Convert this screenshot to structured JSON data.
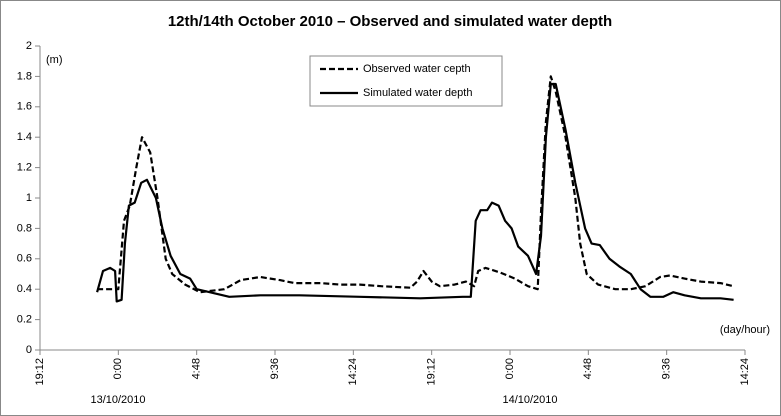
{
  "chart_data": {
    "type": "line",
    "title": "12th/14th October 2010 – Observed and simulated water depth",
    "y_label": "(m)",
    "x_label": "(day/hour)",
    "annotations": [
      "13/10/2010",
      "14/10/2010"
    ],
    "xlim": [
      19.2,
      62.4
    ],
    "xticks": [
      {
        "value": 19.2,
        "label": "19:12"
      },
      {
        "value": 24,
        "label": "0:00"
      },
      {
        "value": 28.8,
        "label": "4:48"
      },
      {
        "value": 33.6,
        "label": "9:36"
      },
      {
        "value": 38.4,
        "label": "14:24"
      },
      {
        "value": 43.2,
        "label": "19:12"
      },
      {
        "value": 48,
        "label": "0:00"
      },
      {
        "value": 52.8,
        "label": "4:48"
      },
      {
        "value": 57.6,
        "label": "9:36"
      },
      {
        "value": 62.4,
        "label": "14:24"
      }
    ],
    "ylim": [
      0,
      2
    ],
    "yticks": [
      0,
      0.2,
      0.4,
      0.6,
      0.8,
      1,
      1.2,
      1.4,
      1.6,
      1.8,
      2
    ],
    "grid": false,
    "series": [
      {
        "name": "Observed water cepth",
        "color": "#000000",
        "dashed": true,
        "x": [
          22.7,
          24,
          24.35,
          24.7,
          25.1,
          25.45,
          25.95,
          26.4,
          26.9,
          27.3,
          28.1,
          29.0,
          30.5,
          31.5,
          32.7,
          33.9,
          34.8,
          36.4,
          37.6,
          38.8,
          40.1,
          41.9,
          42.3,
          42.7,
          43.2,
          43.7,
          44.6,
          45.3,
          45.8,
          46.05,
          46.5,
          47.4,
          48.3,
          49.1,
          49.7,
          49.9,
          50.2,
          50.5,
          50.8,
          51.4,
          52.0,
          52.3,
          52.7,
          53.4,
          54.45,
          55.4,
          56.3,
          57.2,
          57.8,
          58.7,
          59.7,
          60.9,
          61.7
        ],
        "values": [
          0.4,
          0.4,
          0.85,
          0.95,
          1.2,
          1.4,
          1.3,
          1.0,
          0.6,
          0.5,
          0.43,
          0.38,
          0.4,
          0.46,
          0.48,
          0.46,
          0.44,
          0.44,
          0.43,
          0.43,
          0.42,
          0.41,
          0.45,
          0.52,
          0.45,
          0.42,
          0.43,
          0.45,
          0.42,
          0.52,
          0.54,
          0.51,
          0.47,
          0.42,
          0.4,
          0.9,
          1.5,
          1.8,
          1.7,
          1.4,
          1.0,
          0.7,
          0.5,
          0.43,
          0.4,
          0.4,
          0.42,
          0.48,
          0.49,
          0.47,
          0.45,
          0.44,
          0.42
        ]
      },
      {
        "name": "Simulated water depth",
        "color": "#000000",
        "dashed": false,
        "x": [
          22.7,
          23.06,
          23.5,
          23.8,
          23.9,
          24.2,
          24.4,
          24.65,
          25.0,
          25.4,
          25.75,
          26.3,
          26.7,
          27.2,
          27.8,
          28.4,
          28.8,
          29.6,
          30.8,
          32.7,
          35.1,
          38.8,
          42.5,
          45.1,
          45.6,
          45.9,
          46.2,
          46.6,
          46.9,
          47.3,
          47.7,
          48.1,
          48.5,
          49.1,
          49.6,
          49.9,
          50.2,
          50.5,
          50.8,
          51.4,
          52.0,
          52.6,
          53.0,
          53.5,
          54.1,
          54.7,
          55.4,
          56.0,
          56.6,
          57.4,
          58.0,
          58.7,
          59.7,
          60.9,
          61.7
        ],
        "values": [
          0.38,
          0.52,
          0.54,
          0.52,
          0.32,
          0.33,
          0.7,
          0.95,
          0.97,
          1.1,
          1.12,
          1.0,
          0.8,
          0.62,
          0.5,
          0.47,
          0.4,
          0.38,
          0.35,
          0.36,
          0.36,
          0.35,
          0.34,
          0.35,
          0.35,
          0.85,
          0.92,
          0.92,
          0.97,
          0.95,
          0.85,
          0.8,
          0.68,
          0.62,
          0.5,
          0.75,
          1.4,
          1.75,
          1.75,
          1.45,
          1.1,
          0.8,
          0.7,
          0.69,
          0.6,
          0.55,
          0.5,
          0.4,
          0.35,
          0.35,
          0.38,
          0.36,
          0.34,
          0.34,
          0.33
        ]
      }
    ]
  }
}
